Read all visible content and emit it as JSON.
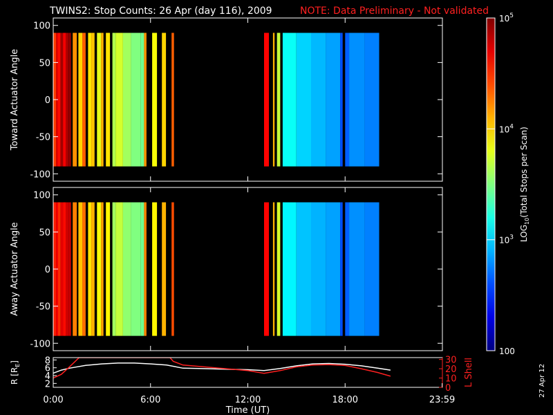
{
  "header": {
    "title": "TWINS2: Stop Counts: 26 Apr (day 116), 2009",
    "note": "NOTE: Data Preliminary - Not validated"
  },
  "footer": {
    "stamp": "27 Apr 12"
  },
  "colors": {
    "background": "#000000",
    "note": "#ff2020",
    "radius_line": "#ffffff",
    "lshell_line": "#ff2020"
  },
  "chart_data": [
    {
      "type": "heatmap",
      "ylabel": "Toward Actuator Angle",
      "ylim": [
        -110,
        110
      ],
      "yticks": [
        -100,
        -50,
        0,
        50,
        100
      ],
      "xlim": [
        0,
        24
      ],
      "angle_range": [
        -90,
        90
      ],
      "columns": [
        {
          "t": [
            0.0,
            0.18
          ],
          "log10": 4.45
        },
        {
          "t": [
            0.18,
            0.3
          ],
          "log10": 4.7
        },
        {
          "t": [
            0.3,
            0.45
          ],
          "log10": 4.6
        },
        {
          "t": [
            0.45,
            0.6
          ],
          "log10": 4.9
        },
        {
          "t": [
            0.6,
            0.78
          ],
          "log10": 4.65
        },
        {
          "t": [
            0.78,
            0.9
          ],
          "log10": 4.85
        },
        {
          "t": [
            0.9,
            1.1
          ],
          "log10": 4.95
        },
        {
          "t": [
            1.2,
            1.45
          ],
          "log10": 4.2
        },
        {
          "t": [
            1.55,
            1.8
          ],
          "log10": 4.0
        },
        {
          "t": [
            1.8,
            2.0
          ],
          "log10": 4.35
        },
        {
          "t": [
            2.15,
            2.35
          ],
          "log10": 3.95
        },
        {
          "t": [
            2.35,
            2.55
          ],
          "log10": 4.05
        },
        {
          "t": [
            2.7,
            2.95
          ],
          "log10": 3.8
        },
        {
          "t": [
            2.95,
            3.1
          ],
          "log10": 4.1
        },
        {
          "t": [
            3.25,
            3.5
          ],
          "log10": 3.95
        },
        {
          "t": [
            3.65,
            3.85
          ],
          "log10": 3.65
        },
        {
          "t": [
            3.85,
            4.3
          ],
          "log10": 3.75
        },
        {
          "t": [
            4.3,
            4.8
          ],
          "log10": 3.6
        },
        {
          "t": [
            4.8,
            5.4
          ],
          "log10": 3.5
        },
        {
          "t": [
            5.4,
            5.6
          ],
          "log10": 3.45
        },
        {
          "t": [
            5.6,
            5.75
          ],
          "log10": 4.2
        },
        {
          "t": [
            6.1,
            6.4
          ],
          "log10": 3.85
        },
        {
          "t": [
            6.7,
            6.95
          ],
          "log10": 4.0
        },
        {
          "t": [
            7.3,
            7.45
          ],
          "log10": 4.35
        },
        {
          "t": [
            13.0,
            13.3
          ],
          "log10": 4.62
        },
        {
          "t": [
            13.55,
            13.65
          ],
          "log10": 4.1
        },
        {
          "t": [
            13.8,
            14.0
          ],
          "log10": 3.7
        },
        {
          "t": [
            14.15,
            15.0
          ],
          "log10": 3.15
        },
        {
          "t": [
            15.0,
            15.9
          ],
          "log10": 3.0
        },
        {
          "t": [
            15.9,
            16.8
          ],
          "log10": 2.92
        },
        {
          "t": [
            16.8,
            17.7
          ],
          "log10": 2.85
        },
        {
          "t": [
            17.7,
            17.85
          ],
          "log10": 2.6
        },
        {
          "t": [
            18.0,
            18.25
          ],
          "log10": 2.65
        },
        {
          "t": [
            18.25,
            19.2
          ],
          "log10": 2.8
        },
        {
          "t": [
            19.2,
            20.1
          ],
          "log10": 2.75
        }
      ]
    },
    {
      "type": "heatmap",
      "ylabel": "Away Actuator Angle",
      "ylim": [
        -110,
        110
      ],
      "yticks": [
        -100,
        -50,
        0,
        50,
        100
      ],
      "xlim": [
        0,
        24
      ],
      "angle_range": [
        -90,
        90
      ],
      "columns": [
        {
          "t": [
            0.0,
            0.18
          ],
          "log10": 4.55
        },
        {
          "t": [
            0.18,
            0.3
          ],
          "log10": 4.65
        },
        {
          "t": [
            0.3,
            0.45
          ],
          "log10": 4.5
        },
        {
          "t": [
            0.45,
            0.6
          ],
          "log10": 4.7
        },
        {
          "t": [
            0.6,
            0.78
          ],
          "log10": 4.6
        },
        {
          "t": [
            0.78,
            0.9
          ],
          "log10": 4.75
        },
        {
          "t": [
            0.9,
            1.1
          ],
          "log10": 4.8
        },
        {
          "t": [
            1.2,
            1.45
          ],
          "log10": 4.25
        },
        {
          "t": [
            1.55,
            1.8
          ],
          "log10": 4.05
        },
        {
          "t": [
            1.8,
            2.0
          ],
          "log10": 4.3
        },
        {
          "t": [
            2.15,
            2.35
          ],
          "log10": 3.95
        },
        {
          "t": [
            2.35,
            2.55
          ],
          "log10": 4.1
        },
        {
          "t": [
            2.7,
            2.95
          ],
          "log10": 3.85
        },
        {
          "t": [
            2.95,
            3.1
          ],
          "log10": 4.15
        },
        {
          "t": [
            3.25,
            3.5
          ],
          "log10": 3.9
        },
        {
          "t": [
            3.65,
            3.85
          ],
          "log10": 3.6
        },
        {
          "t": [
            3.85,
            4.3
          ],
          "log10": 3.7
        },
        {
          "t": [
            4.3,
            4.8
          ],
          "log10": 3.55
        },
        {
          "t": [
            4.8,
            5.4
          ],
          "log10": 3.5
        },
        {
          "t": [
            5.4,
            5.6
          ],
          "log10": 3.45
        },
        {
          "t": [
            5.6,
            5.75
          ],
          "log10": 4.25
        },
        {
          "t": [
            6.1,
            6.4
          ],
          "log10": 3.9
        },
        {
          "t": [
            6.7,
            6.95
          ],
          "log10": 4.1
        },
        {
          "t": [
            7.3,
            7.45
          ],
          "log10": 4.4
        },
        {
          "t": [
            13.0,
            13.3
          ],
          "log10": 4.62
        },
        {
          "t": [
            13.55,
            13.65
          ],
          "log10": 4.1
        },
        {
          "t": [
            13.8,
            14.0
          ],
          "log10": 3.75
        },
        {
          "t": [
            14.15,
            15.0
          ],
          "log10": 3.1
        },
        {
          "t": [
            15.0,
            15.9
          ],
          "log10": 2.95
        },
        {
          "t": [
            15.9,
            16.8
          ],
          "log10": 2.9
        },
        {
          "t": [
            16.8,
            17.7
          ],
          "log10": 2.85
        },
        {
          "t": [
            17.7,
            17.85
          ],
          "log10": 2.6
        },
        {
          "t": [
            18.0,
            18.25
          ],
          "log10": 2.65
        },
        {
          "t": [
            18.25,
            19.2
          ],
          "log10": 2.8
        },
        {
          "t": [
            19.2,
            20.1
          ],
          "log10": 2.75
        }
      ]
    },
    {
      "type": "line",
      "xlabel": "Time (UT)",
      "xlim": [
        0,
        24
      ],
      "xtick_labels": [
        {
          "t": 0,
          "label": "0:00"
        },
        {
          "t": 6,
          "label": "6:00"
        },
        {
          "t": 12,
          "label": "12:00"
        },
        {
          "t": 18,
          "label": "18:00"
        },
        {
          "t": 23.983,
          "label": "23:59"
        }
      ],
      "left_axis": {
        "ylabel": "R [R",
        "ylabel_sub": "E",
        "ylabel_end": "]",
        "ylim": [
          1,
          8.6
        ],
        "yticks": [
          2,
          4,
          6,
          8
        ]
      },
      "right_axis": {
        "ylabel": "L Shell",
        "ylim": [
          0,
          32
        ],
        "yticks": [
          0,
          10,
          20,
          30
        ]
      },
      "series": [
        {
          "axis": "left",
          "x": [
            0.0,
            0.5,
            1.0,
            2.0,
            3.0,
            4.0,
            5.0,
            6.0,
            7.0,
            7.5,
            8.0,
            9.0,
            10.0,
            11.0,
            12.0,
            13.0,
            14.0,
            15.0,
            16.0,
            17.0,
            18.0,
            19.0,
            20.0,
            20.8
          ],
          "y": [
            4.6,
            5.4,
            5.9,
            6.6,
            7.0,
            7.2,
            7.2,
            7.0,
            6.7,
            6.3,
            5.9,
            5.8,
            5.7,
            5.6,
            5.5,
            5.3,
            5.8,
            6.5,
            7.0,
            7.1,
            6.9,
            6.5,
            5.9,
            5.4
          ]
        },
        {
          "axis": "right",
          "x": [
            0.0,
            0.5,
            1.0,
            1.6,
            7.2,
            7.4,
            8.0,
            10.0,
            12.0,
            13.0,
            14.0,
            15.0,
            16.0,
            17.0,
            18.0,
            19.0,
            20.0,
            20.8
          ],
          "y": [
            10,
            14,
            22,
            32,
            32,
            28,
            24,
            21,
            18,
            15,
            18,
            22,
            24,
            24.5,
            23.5,
            20,
            16,
            12
          ]
        }
      ]
    },
    {
      "type": "colorbar",
      "label": "LOG",
      "label_sub": "10",
      "label_end": "(Total Stops per Scan)",
      "range_log10": [
        2,
        5
      ],
      "ticks": [
        {
          "v": 2,
          "base": "100",
          "exp": ""
        },
        {
          "v": 3,
          "base": "10",
          "exp": "3"
        },
        {
          "v": 4,
          "base": "10",
          "exp": "4"
        },
        {
          "v": 5,
          "base": "10",
          "exp": "5"
        }
      ]
    }
  ]
}
